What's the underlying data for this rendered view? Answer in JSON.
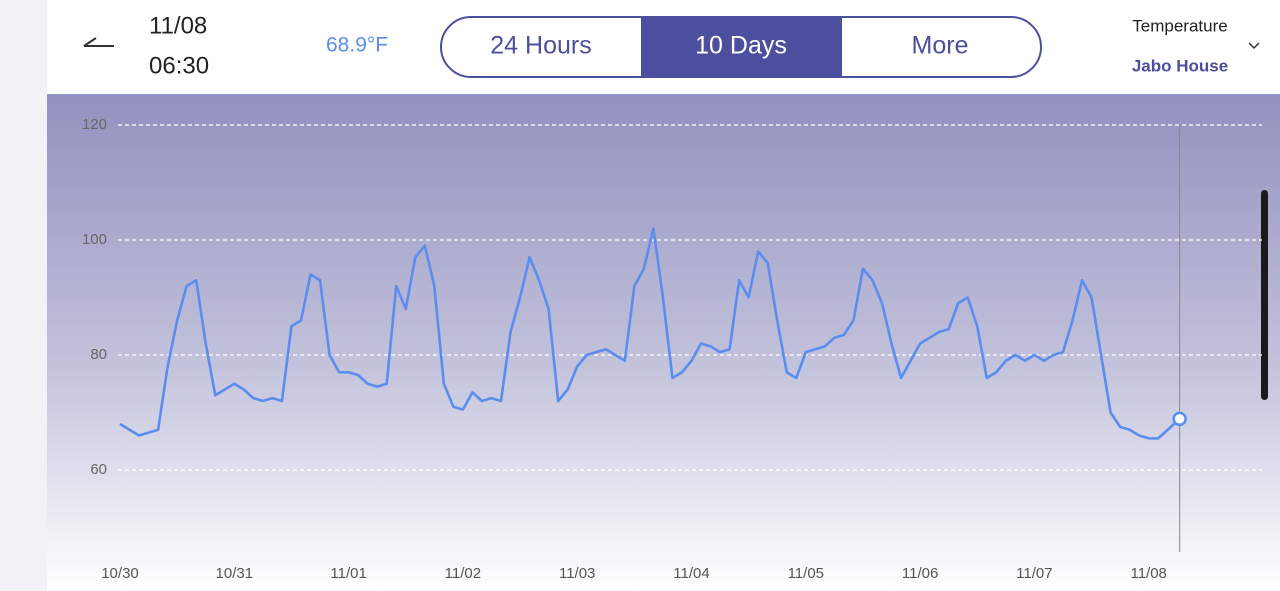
{
  "header": {
    "date": "11/08",
    "time": "06:30",
    "current": "68.9°F",
    "tabs": [
      "24 Hours",
      "10 Days",
      "More"
    ],
    "metric": "Temperature",
    "location": "Jabo House"
  },
  "chart_data": {
    "type": "line",
    "grid": true,
    "x": [
      0,
      2,
      4,
      6,
      8,
      10,
      12,
      14,
      16,
      18,
      20,
      22,
      24,
      26,
      28,
      30,
      32,
      34,
      36,
      38,
      40,
      42,
      44,
      46,
      48,
      50,
      52,
      54,
      56,
      58,
      60,
      62,
      64,
      66,
      68,
      70,
      72,
      74,
      76,
      78,
      80,
      82,
      84,
      86,
      88,
      90,
      92,
      94,
      96,
      98,
      100,
      102,
      104,
      106,
      108,
      110,
      112,
      114,
      116,
      118,
      120,
      122,
      124,
      126,
      128,
      130,
      132,
      134,
      136,
      138,
      140,
      142,
      144,
      146,
      148,
      150,
      152,
      154,
      156,
      158,
      160,
      162,
      164,
      166,
      168,
      170,
      172,
      174,
      176,
      178,
      180,
      182,
      184,
      186,
      188,
      190,
      192,
      194,
      196,
      198,
      200,
      202,
      204,
      206,
      208,
      210,
      212,
      214,
      216,
      218,
      220,
      222.5
    ],
    "series": [
      {
        "name": "Temperature",
        "color": "#5b8def",
        "values": [
          68,
          67,
          66,
          66.5,
          67,
          78,
          86,
          92,
          93,
          82,
          73,
          74,
          75,
          74,
          72.5,
          72,
          72.5,
          72,
          85,
          86,
          94,
          93,
          80,
          77,
          77,
          76.5,
          75,
          74.5,
          75,
          92,
          88,
          97,
          99,
          92,
          75,
          71,
          70.5,
          73.5,
          72,
          72.5,
          72,
          84,
          90,
          97,
          93,
          88,
          72,
          74,
          78,
          80,
          80.5,
          81,
          80,
          79,
          92,
          95,
          102,
          90,
          76,
          77,
          79,
          82,
          81.5,
          80.5,
          81,
          93,
          90,
          98,
          96,
          86,
          77,
          76,
          80.5,
          81,
          81.5,
          83,
          83.5,
          86,
          95,
          93,
          89,
          82,
          76,
          79,
          82,
          83,
          84,
          84.5,
          89,
          90,
          85,
          76,
          77,
          79,
          80,
          79,
          80,
          79,
          80,
          80.5,
          86,
          93,
          90,
          80,
          70,
          67.5,
          67,
          66,
          65.5,
          65.5,
          67,
          68.9
        ]
      }
    ],
    "xlim": [
      0,
      222.5
    ],
    "xticks": [
      {
        "value": 0,
        "label": "10/30"
      },
      {
        "value": 24,
        "label": "10/31"
      },
      {
        "value": 48,
        "label": "11/01"
      },
      {
        "value": 72,
        "label": "11/02"
      },
      {
        "value": 96,
        "label": "11/03"
      },
      {
        "value": 120,
        "label": "11/04"
      },
      {
        "value": 144,
        "label": "11/05"
      },
      {
        "value": 168,
        "label": "11/06"
      },
      {
        "value": 192,
        "label": "11/07"
      },
      {
        "value": 216,
        "label": "11/08"
      }
    ],
    "ylim": [
      46,
      120
    ],
    "yticks": [
      60,
      80,
      100,
      120
    ]
  }
}
